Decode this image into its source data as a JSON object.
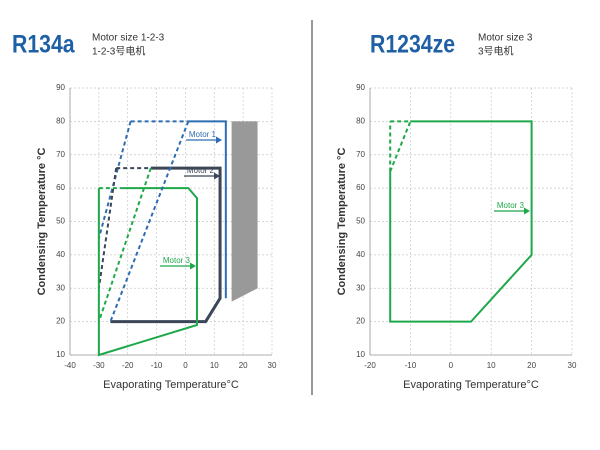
{
  "chart_data": [
    {
      "type": "line",
      "title": "R134a",
      "annotations": [
        "Motor size 1-2-3",
        "1-2-3号电机"
      ],
      "xlabel": "Evaporating Temperature°C",
      "ylabel": "Condensing Temperature °C",
      "xlim": [
        -40,
        30
      ],
      "ylim": [
        10,
        90
      ],
      "xticks": [
        -40,
        -30,
        -20,
        -10,
        0,
        10,
        20,
        30
      ],
      "yticks": [
        10,
        20,
        30,
        40,
        50,
        60,
        70,
        80,
        90
      ],
      "grid": true,
      "series": [
        {
          "name": "Motor 1",
          "color": "#2e6db0",
          "x": [
            1,
            14,
            14
          ],
          "values": [
            80,
            80,
            27
          ]
        },
        {
          "color": "#2e6db0",
          "dash": true,
          "x": [
            -19,
            1
          ],
          "values": [
            80,
            80
          ]
        },
        {
          "color": "#2e6db0",
          "dash": true,
          "x": [
            -19,
            -30
          ],
          "values": [
            80,
            45
          ]
        },
        {
          "name": "Motor 2",
          "color": "#3b4656",
          "x": [
            -12,
            12,
            12,
            7,
            -26
          ],
          "values": [
            66,
            66,
            27,
            20,
            20
          ]
        },
        {
          "color": "#3b4656",
          "dash": true,
          "x": [
            -24,
            -12
          ],
          "values": [
            66,
            66
          ]
        },
        {
          "color": "#3b4656",
          "dash": true,
          "x": [
            -24,
            -30
          ],
          "values": [
            66,
            30
          ]
        },
        {
          "name": "Motor 3",
          "color": "#1fa84a",
          "x": [
            -22,
            1,
            4,
            4,
            -30,
            -30
          ],
          "values": [
            60,
            60,
            57,
            19,
            10,
            60
          ]
        },
        {
          "color": "#1fa84a",
          "dash": true,
          "x": [
            -30,
            -22
          ],
          "values": [
            60,
            60
          ]
        },
        {
          "color": "#1fa84a",
          "dash": true,
          "x": [
            -12,
            -30
          ],
          "values": [
            66,
            20
          ]
        },
        {
          "color": "#2e6db0",
          "dash": true,
          "x": [
            1,
            -26
          ],
          "values": [
            80,
            20
          ]
        },
        {
          "color": "#999999",
          "fill": true,
          "x": [
            16,
            25,
            25,
            16
          ],
          "values": [
            80,
            80,
            30,
            26
          ]
        }
      ]
    },
    {
      "type": "line",
      "title": "R1234ze",
      "annotations": [
        "Motor size 3",
        "3号电机"
      ],
      "xlabel": "Evaporating Temperature°C",
      "ylabel": "Condensing Temperature °C",
      "xlim": [
        -20,
        30
      ],
      "ylim": [
        10,
        90
      ],
      "xticks": [
        -20,
        -10,
        0,
        10,
        20,
        30
      ],
      "yticks": [
        10,
        20,
        30,
        40,
        50,
        60,
        70,
        80,
        90
      ],
      "grid": true,
      "series": [
        {
          "name": "Motor 3",
          "color": "#1fa84a",
          "x": [
            -10,
            20,
            20,
            5,
            -15,
            -15
          ],
          "values": [
            80,
            80,
            40,
            20,
            20,
            65
          ]
        },
        {
          "color": "#1fa84a",
          "dash": true,
          "x": [
            -15,
            -10
          ],
          "values": [
            80,
            80
          ]
        },
        {
          "color": "#1fa84a",
          "dash": true,
          "x": [
            -15,
            -15
          ],
          "values": [
            65,
            80
          ]
        },
        {
          "color": "#1fa84a",
          "dash": true,
          "x": [
            -15,
            -10
          ],
          "values": [
            65,
            80
          ]
        }
      ]
    }
  ]
}
